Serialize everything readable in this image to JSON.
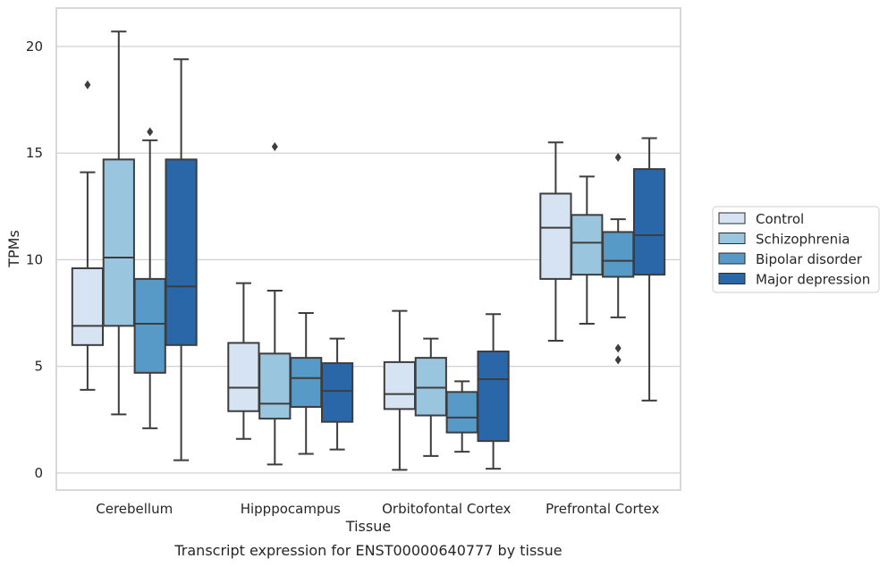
{
  "caption": "Transcript expression for ENST00000640777 by tissue",
  "chart_data": {
    "type": "box",
    "xlabel": "Tissue",
    "ylabel": "TPMs",
    "ylim": [
      -0.8,
      21.8
    ],
    "yticks": [
      0,
      5,
      10,
      15,
      20
    ],
    "grid": "horizontal",
    "legend_position": "right, outside plot",
    "categories": [
      "Cerebellum",
      "Hipppocampus",
      "Orbitofontal Cortex",
      "Prefrontal Cortex"
    ],
    "series": [
      {
        "name": "Control",
        "color": "#d6e3f2",
        "boxes": [
          {
            "whislo": 3.9,
            "q1": 6.0,
            "med": 6.9,
            "q3": 9.6,
            "whishi": 14.1,
            "fliers": [
              18.2
            ]
          },
          {
            "whislo": 1.6,
            "q1": 2.9,
            "med": 4.0,
            "q3": 6.1,
            "whishi": 8.9,
            "fliers": []
          },
          {
            "whislo": 0.15,
            "q1": 3.0,
            "med": 3.7,
            "q3": 5.2,
            "whishi": 7.6,
            "fliers": []
          },
          {
            "whislo": 6.2,
            "q1": 9.1,
            "med": 11.5,
            "q3": 13.1,
            "whishi": 15.5,
            "fliers": []
          }
        ]
      },
      {
        "name": "Schizophrenia",
        "color": "#9ac5df",
        "boxes": [
          {
            "whislo": 2.75,
            "q1": 6.9,
            "med": 10.1,
            "q3": 14.7,
            "whishi": 20.7,
            "fliers": []
          },
          {
            "whislo": 0.4,
            "q1": 2.55,
            "med": 3.25,
            "q3": 5.6,
            "whishi": 8.55,
            "fliers": [
              15.3
            ]
          },
          {
            "whislo": 0.8,
            "q1": 2.7,
            "med": 4.0,
            "q3": 5.4,
            "whishi": 6.3,
            "fliers": []
          },
          {
            "whislo": 7.0,
            "q1": 9.3,
            "med": 10.8,
            "q3": 12.1,
            "whishi": 13.9,
            "fliers": []
          }
        ]
      },
      {
        "name": "Bipolar disorder",
        "color": "#5799c7",
        "boxes": [
          {
            "whislo": 2.1,
            "q1": 4.7,
            "med": 7.0,
            "q3": 9.1,
            "whishi": 15.6,
            "fliers": [
              16.0
            ]
          },
          {
            "whislo": 0.9,
            "q1": 3.1,
            "med": 4.45,
            "q3": 5.4,
            "whishi": 7.5,
            "fliers": []
          },
          {
            "whislo": 1.0,
            "q1": 1.9,
            "med": 2.6,
            "q3": 3.8,
            "whishi": 4.3,
            "fliers": []
          },
          {
            "whislo": 7.3,
            "q1": 9.2,
            "med": 9.95,
            "q3": 11.3,
            "whishi": 11.9,
            "fliers": [
              14.8,
              5.85,
              5.3
            ]
          }
        ]
      },
      {
        "name": "Major depression",
        "color": "#2a67a8",
        "boxes": [
          {
            "whislo": 0.6,
            "q1": 6.0,
            "med": 8.75,
            "q3": 14.7,
            "whishi": 19.4,
            "fliers": []
          },
          {
            "whislo": 1.1,
            "q1": 2.4,
            "med": 3.85,
            "q3": 5.15,
            "whishi": 6.3,
            "fliers": []
          },
          {
            "whislo": 0.2,
            "q1": 1.5,
            "med": 4.4,
            "q3": 5.7,
            "whishi": 7.45,
            "fliers": []
          },
          {
            "whislo": 3.4,
            "q1": 9.3,
            "med": 11.15,
            "q3": 14.25,
            "whishi": 15.7,
            "fliers": []
          }
        ]
      }
    ]
  }
}
